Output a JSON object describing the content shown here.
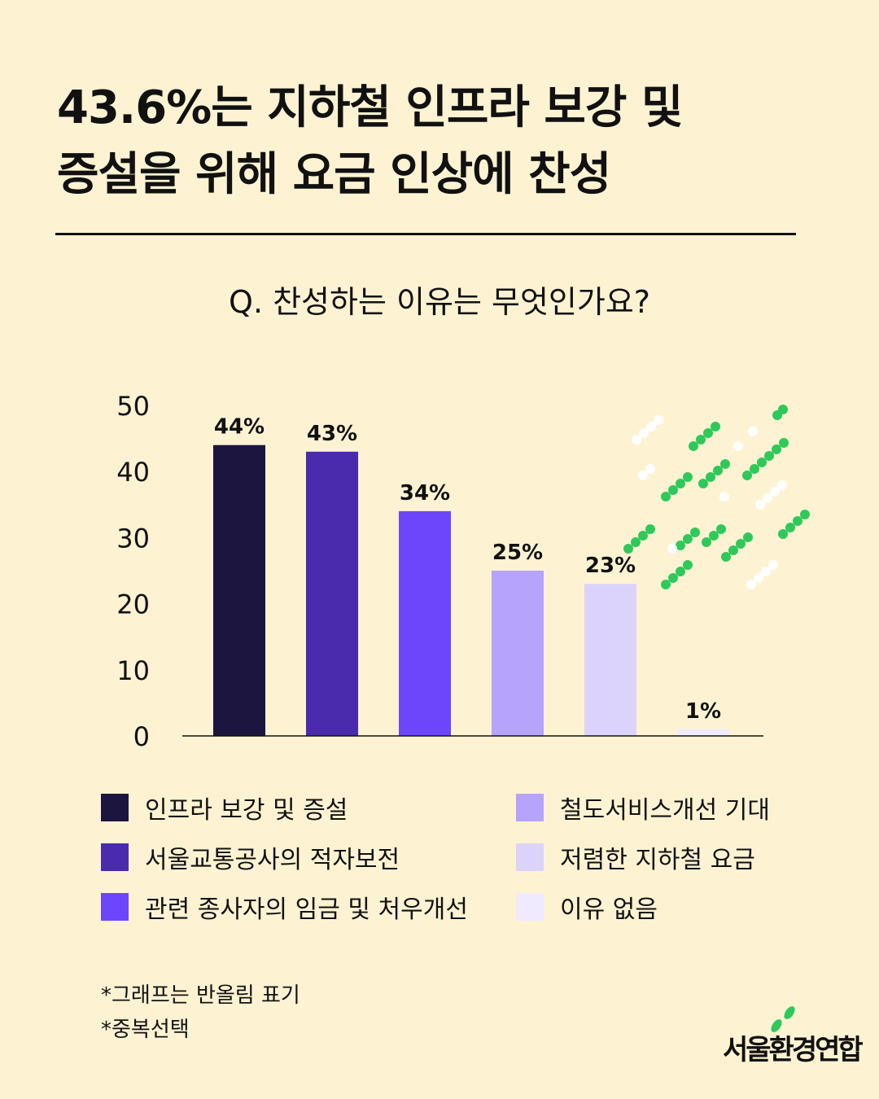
{
  "title": {
    "line1": "43.6%는 지하철 인프라 보강 및",
    "line2": "증설을 위해 요금 인상에 찬성"
  },
  "question": "Q. 찬성하는 이유는 무엇인가요?",
  "chart_data": {
    "type": "bar",
    "categories": [
      "인프라 보강 및 증설",
      "서울교통공사의 적자보전",
      "관련 종사자의 임금 및 처우개선",
      "철도서비스개선 기대",
      "저렴한 지하철 요금",
      "이유 없음"
    ],
    "values": [
      44,
      43,
      34,
      25,
      23,
      1
    ],
    "data_labels": [
      "44%",
      "43%",
      "34%",
      "25%",
      "23%",
      "1%"
    ],
    "colors": [
      "#1c1540",
      "#4a2aad",
      "#6c46fb",
      "#b6a3fc",
      "#dcd3fd",
      "#efeafe"
    ],
    "yticks": [
      "0",
      "10",
      "20",
      "30",
      "40",
      "50"
    ],
    "ylim": [
      0,
      50
    ],
    "grid": false,
    "legend": "bottom"
  },
  "notes": [
    "*그래프는 반올림 표기",
    "*중복선택"
  ],
  "logo": {
    "text": "서울환경연합",
    "accent_color": "#2fc95a"
  }
}
